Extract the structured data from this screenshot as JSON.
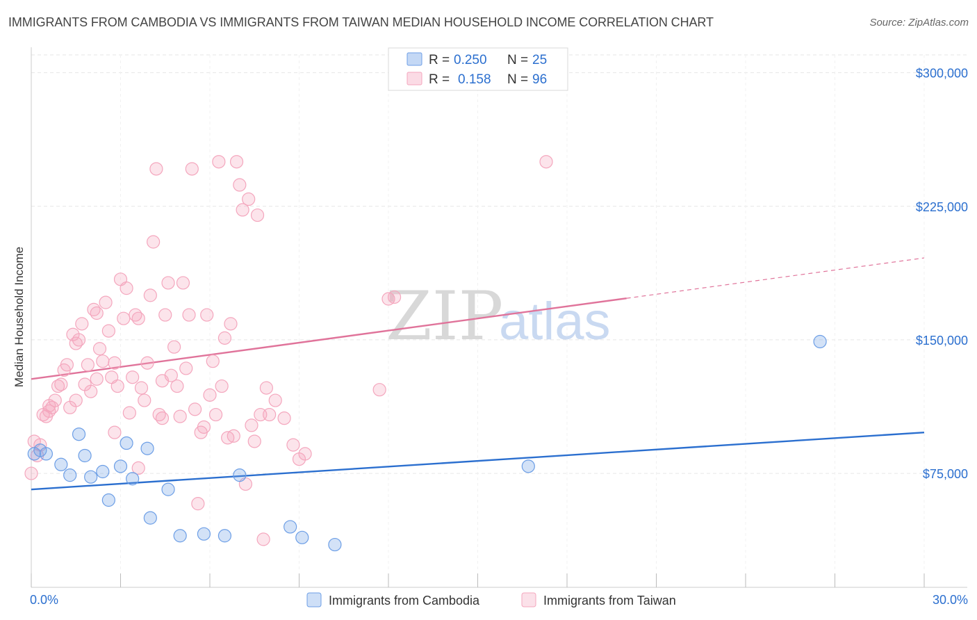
{
  "header": {
    "title": "IMMIGRANTS FROM CAMBODIA VS IMMIGRANTS FROM TAIWAN MEDIAN HOUSEHOLD INCOME CORRELATION CHART",
    "source": "Source: ZipAtlas.com"
  },
  "watermark": {
    "zip": "ZIP",
    "atlas": "atlas"
  },
  "chart_data": {
    "type": "scatter",
    "title": "IMMIGRANTS FROM CAMBODIA VS IMMIGRANTS FROM TAIWAN MEDIAN HOUSEHOLD INCOME CORRELATION CHART",
    "xlabel": "",
    "ylabel": "Median Household Income",
    "xlim": [
      0,
      30
    ],
    "ylim": [
      20000,
      310000
    ],
    "x_tick_labels": [
      "0.0%",
      "30.0%"
    ],
    "y_ticks": [
      75000,
      150000,
      225000,
      300000
    ],
    "y_tick_labels": [
      "$75,000",
      "$150,000",
      "$225,000",
      "$300,000"
    ],
    "grid": true,
    "legend_position": "top-center",
    "legend": {
      "r_label": "R =",
      "n_label": "N =",
      "entries": [
        {
          "r": "0.250",
          "n": "25"
        },
        {
          "r": "0.158",
          "n": "96"
        }
      ]
    },
    "series": [
      {
        "name": "Immigrants from Cambodia",
        "color": "#6c9ee6",
        "trend_color": "#2b6fcf",
        "trend": {
          "x0": 0,
          "y0": 66000,
          "x1": 30,
          "y1": 98000,
          "solid_to": 30
        },
        "points": [
          [
            0.1,
            86000
          ],
          [
            0.3,
            88000
          ],
          [
            0.5,
            86000
          ],
          [
            1.0,
            80000
          ],
          [
            1.3,
            74000
          ],
          [
            1.6,
            97000
          ],
          [
            1.8,
            85000
          ],
          [
            2.0,
            73000
          ],
          [
            2.4,
            76000
          ],
          [
            2.6,
            60000
          ],
          [
            3.0,
            79000
          ],
          [
            3.2,
            92000
          ],
          [
            3.4,
            72000
          ],
          [
            3.9,
            89000
          ],
          [
            4.0,
            50000
          ],
          [
            4.6,
            66000
          ],
          [
            5.0,
            40000
          ],
          [
            5.8,
            41000
          ],
          [
            6.5,
            40000
          ],
          [
            7.0,
            74000
          ],
          [
            8.7,
            45000
          ],
          [
            9.1,
            39000
          ],
          [
            10.2,
            35000
          ],
          [
            16.7,
            79000
          ],
          [
            26.5,
            149000
          ]
        ]
      },
      {
        "name": "Immigrants from Taiwan",
        "color": "#f4a6bd",
        "trend_color": "#e0739a",
        "trend": {
          "x0": 0,
          "y0": 128000,
          "x1": 30,
          "y1": 196000,
          "solid_to": 20
        },
        "points": [
          [
            0.0,
            75000
          ],
          [
            0.1,
            93000
          ],
          [
            0.2,
            85000
          ],
          [
            0.3,
            91000
          ],
          [
            0.4,
            108000
          ],
          [
            0.5,
            107000
          ],
          [
            0.6,
            113000
          ],
          [
            0.7,
            112000
          ],
          [
            0.8,
            116000
          ],
          [
            0.9,
            124000
          ],
          [
            1.0,
            125000
          ],
          [
            1.1,
            133000
          ],
          [
            1.2,
            136000
          ],
          [
            1.3,
            112000
          ],
          [
            1.4,
            153000
          ],
          [
            1.5,
            148000
          ],
          [
            1.6,
            150000
          ],
          [
            1.7,
            159000
          ],
          [
            1.8,
            125000
          ],
          [
            1.9,
            136000
          ],
          [
            2.0,
            121000
          ],
          [
            2.1,
            167000
          ],
          [
            2.2,
            165000
          ],
          [
            2.3,
            145000
          ],
          [
            2.4,
            138000
          ],
          [
            2.5,
            171000
          ],
          [
            2.6,
            155000
          ],
          [
            2.7,
            129000
          ],
          [
            2.8,
            137000
          ],
          [
            2.9,
            124000
          ],
          [
            3.0,
            184000
          ],
          [
            3.1,
            162000
          ],
          [
            3.2,
            179000
          ],
          [
            3.3,
            109000
          ],
          [
            3.4,
            129000
          ],
          [
            3.5,
            164000
          ],
          [
            3.6,
            162000
          ],
          [
            3.7,
            123000
          ],
          [
            3.8,
            116000
          ],
          [
            3.9,
            137000
          ],
          [
            4.0,
            175000
          ],
          [
            4.1,
            205000
          ],
          [
            4.2,
            246000
          ],
          [
            4.3,
            108000
          ],
          [
            4.4,
            127000
          ],
          [
            4.5,
            164000
          ],
          [
            4.6,
            182000
          ],
          [
            4.7,
            130000
          ],
          [
            4.8,
            146000
          ],
          [
            4.9,
            124000
          ],
          [
            5.0,
            107000
          ],
          [
            5.1,
            182000
          ],
          [
            5.2,
            134000
          ],
          [
            5.3,
            164000
          ],
          [
            5.4,
            246000
          ],
          [
            5.5,
            111000
          ],
          [
            5.6,
            58000
          ],
          [
            5.7,
            98000
          ],
          [
            5.8,
            101000
          ],
          [
            5.9,
            164000
          ],
          [
            6.0,
            119000
          ],
          [
            6.1,
            138000
          ],
          [
            6.2,
            108000
          ],
          [
            6.3,
            250000
          ],
          [
            6.4,
            124000
          ],
          [
            6.5,
            151000
          ],
          [
            6.6,
            95000
          ],
          [
            6.7,
            159000
          ],
          [
            6.8,
            96000
          ],
          [
            6.9,
            250000
          ],
          [
            7.0,
            237000
          ],
          [
            7.1,
            223000
          ],
          [
            7.2,
            69000
          ],
          [
            7.3,
            229000
          ],
          [
            7.4,
            102000
          ],
          [
            7.5,
            93000
          ],
          [
            7.6,
            220000
          ],
          [
            7.7,
            108000
          ],
          [
            7.8,
            38000
          ],
          [
            7.9,
            123000
          ],
          [
            8.0,
            108000
          ],
          [
            8.2,
            116000
          ],
          [
            8.5,
            106000
          ],
          [
            8.8,
            91000
          ],
          [
            9.0,
            83000
          ],
          [
            9.2,
            86000
          ],
          [
            11.7,
            122000
          ],
          [
            12.0,
            173000
          ],
          [
            12.2,
            174000
          ],
          [
            17.3,
            250000
          ],
          [
            3.6,
            78000
          ],
          [
            2.2,
            128000
          ],
          [
            1.5,
            116000
          ],
          [
            0.6,
            110000
          ],
          [
            2.8,
            98000
          ],
          [
            4.4,
            106000
          ]
        ]
      }
    ]
  }
}
